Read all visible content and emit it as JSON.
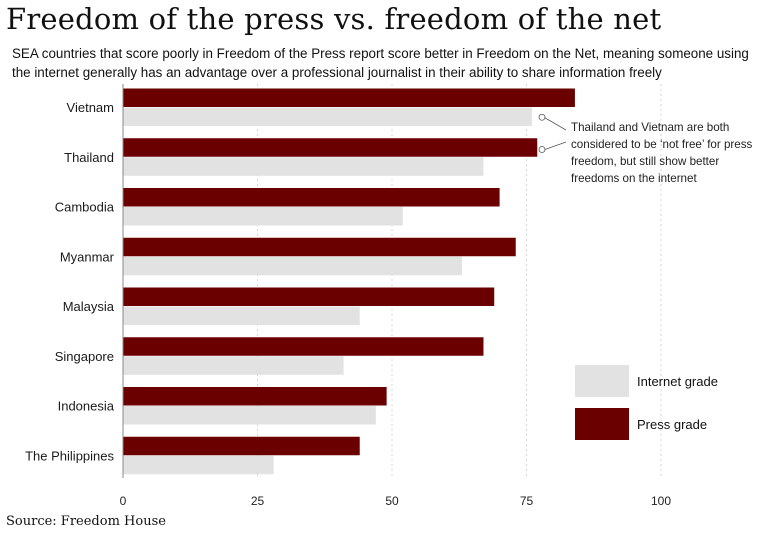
{
  "title": "Freedom of the press vs. freedom of the net",
  "subtitle": "SEA countries that score poorly in Freedom of the Press report score better in Freedom on the Net, meaning someone using the internet generally has an advantage over a professional journalist in their ability to share information freely",
  "source": "Source: Freedom House",
  "annotation": "Thailand and Vietnam are both considered to be ‘not free’ for press freedom, but still show better freedoms on the internet",
  "colors": {
    "press": "#6b0000",
    "internet": "#e2e2e2",
    "grid": "#d6d6d6",
    "axis": "#888888"
  },
  "legend": [
    {
      "label": "Internet grade",
      "color": "#e2e2e2",
      "series": "internet"
    },
    {
      "label": "Press grade",
      "color": "#6b0000",
      "series": "press"
    }
  ],
  "chart_data": {
    "type": "bar",
    "orientation": "horizontal",
    "categories": [
      "Vietnam",
      "Thailand",
      "Cambodia",
      "Myanmar",
      "Malaysia",
      "Singapore",
      "Indonesia",
      "The Philippines"
    ],
    "series": [
      {
        "name": "Press grade",
        "values": [
          84,
          77,
          70,
          73,
          69,
          67,
          49,
          44
        ]
      },
      {
        "name": "Internet grade",
        "values": [
          76,
          67,
          52,
          63,
          44,
          41,
          47,
          28
        ]
      }
    ],
    "xlim": [
      0,
      100
    ],
    "xticks": [
      0,
      25,
      50,
      75,
      100
    ],
    "grid": true,
    "legend_position": "right"
  }
}
